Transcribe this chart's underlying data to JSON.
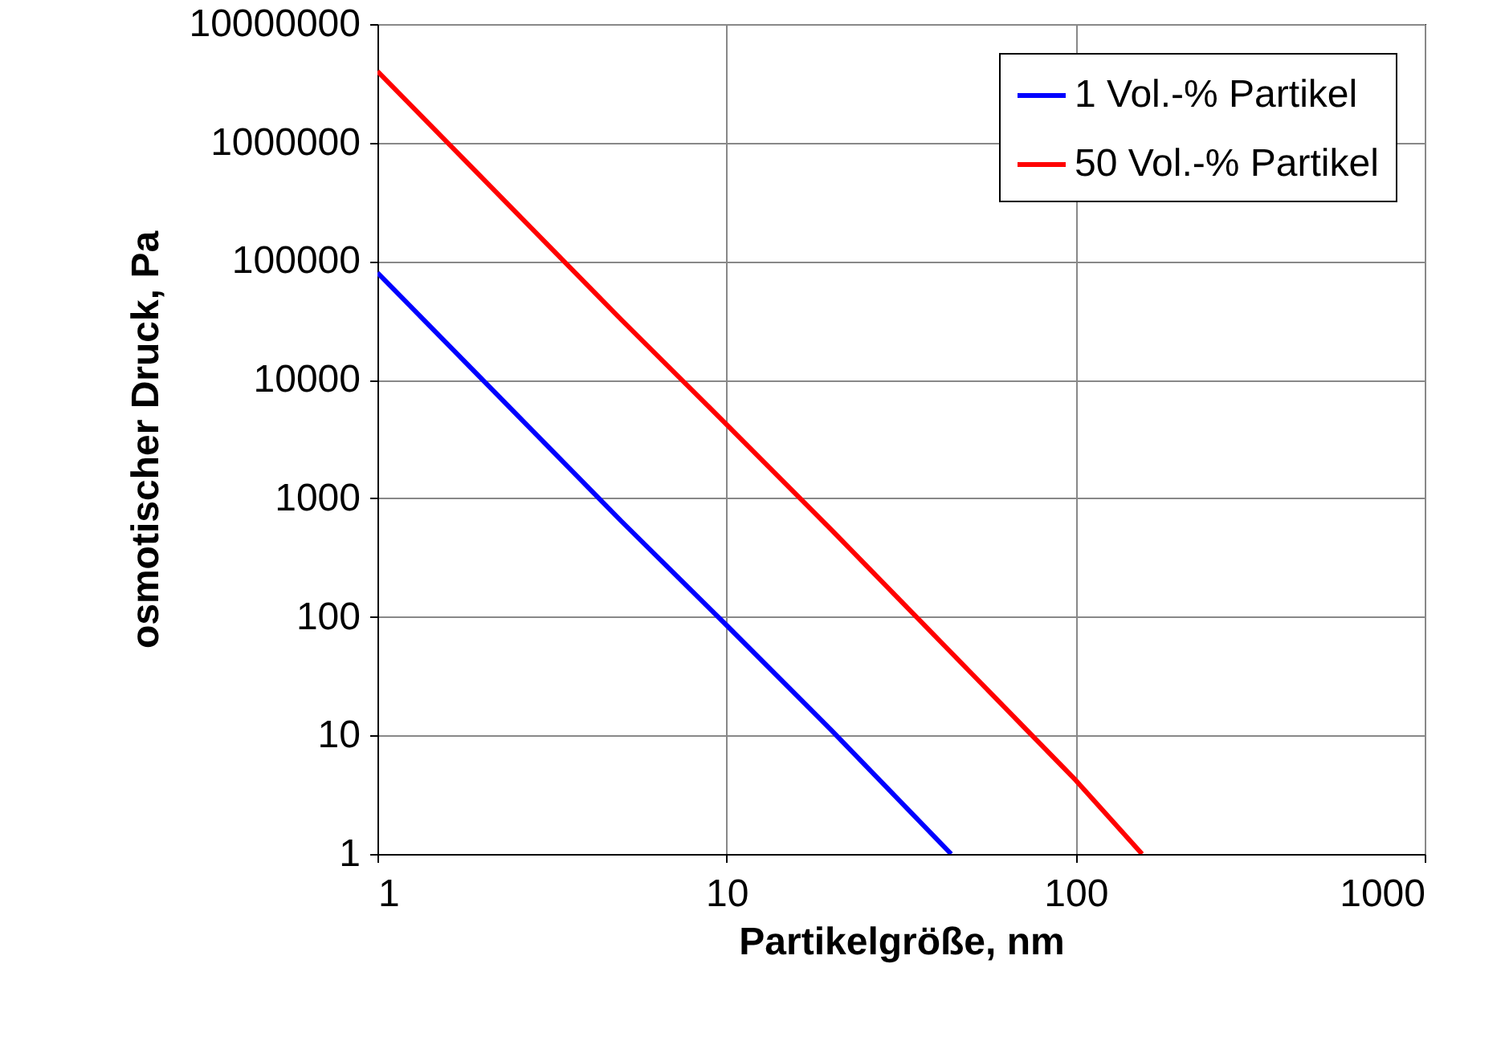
{
  "chart_data": {
    "type": "line",
    "xlabel": "Partikelgröße, nm",
    "ylabel": "osmotischer Druck, Pa",
    "log": "xy",
    "grid": true,
    "legend": "top right",
    "marker": "none",
    "line_style": "solid",
    "xlim": [
      1,
      1000
    ],
    "xticks": [
      1,
      10,
      100,
      1000
    ],
    "ylim": [
      1,
      10000000
    ],
    "yticks": [
      1,
      10,
      100,
      1000,
      10000,
      100000,
      1000000,
      10000000
    ],
    "series": [
      {
        "name": "1 Vol.-% Partikel",
        "color": "#0000ff",
        "x": [
          1,
          2,
          5,
          10,
          20,
          44
        ],
        "values": [
          80000,
          10000,
          640,
          85,
          11,
          1
        ]
      },
      {
        "name": "50 Vol.-% Partikel",
        "color": "#ff0000",
        "x": [
          1,
          2,
          5,
          10,
          20,
          50,
          100,
          155
        ],
        "values": [
          4000000,
          500000,
          32000,
          4200,
          540,
          34,
          4.2,
          1
        ]
      }
    ]
  }
}
